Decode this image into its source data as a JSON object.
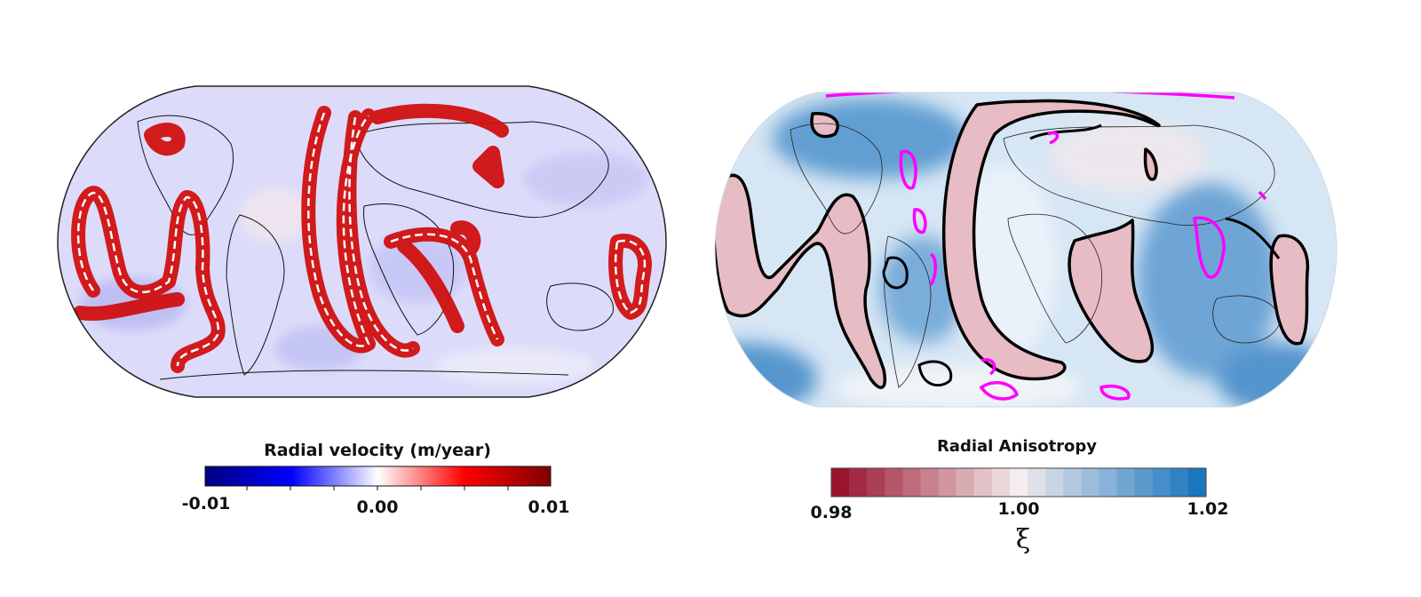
{
  "panels": {
    "left": {
      "colorbar": {
        "title": "Radial velocity (m/year)",
        "min_label": "-0.01",
        "mid_label": "0.00",
        "max_label": "0.01",
        "colors": [
          "#00007f",
          "#0000ff",
          "#ffffff",
          "#ff0000",
          "#7f0000"
        ]
      }
    },
    "right": {
      "colorbar": {
        "title": "Radial Anisotropy",
        "min_label": "0.98",
        "mid_label": "1.00",
        "max_label": "1.02",
        "symbol": "ξ",
        "steps": 21,
        "colors": [
          "#9a1430",
          "#f4eded",
          "#1b76c0"
        ]
      },
      "contour_colors": {
        "anomaly": "#000000",
        "secondary": "#ff00ff"
      }
    }
  }
}
